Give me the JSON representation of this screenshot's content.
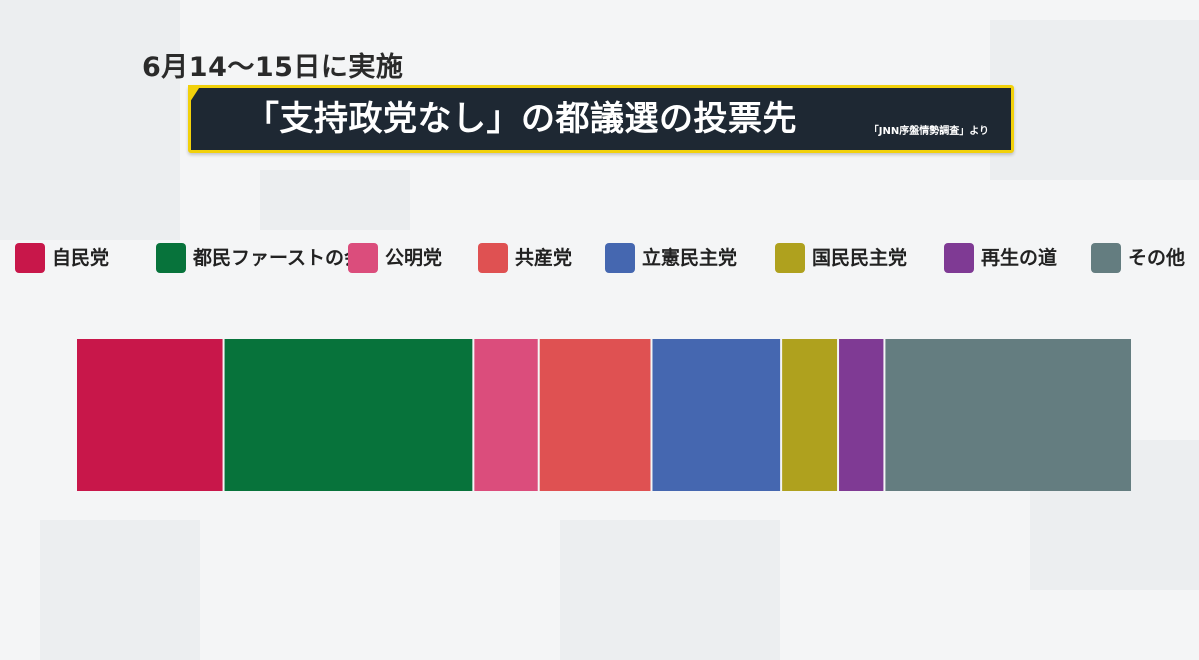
{
  "header": {
    "date_text": "6月14～15日に実施",
    "title": "「支持政党なし」の都議選の投票先",
    "source": "「JNN序盤情勢調査」より"
  },
  "chart_data": {
    "type": "bar",
    "stacked": true,
    "orientation": "horizontal",
    "value_unit": "share (%)",
    "categories": [
      "自民党",
      "都民ファーストの会",
      "公明党",
      "共産党",
      "立憲民主党",
      "国民民主党",
      "再生の道",
      "その他"
    ],
    "values": [
      14,
      23.7,
      6.2,
      10.7,
      12.3,
      5.4,
      4.4,
      23.3
    ],
    "colors": [
      "#c8174a",
      "#07733b",
      "#db4d7c",
      "#df5152",
      "#4567b0",
      "#afa11e",
      "#7f3a94",
      "#647d80"
    ],
    "legend_position": "top",
    "axis_labels_shown": false,
    "grid": false
  }
}
